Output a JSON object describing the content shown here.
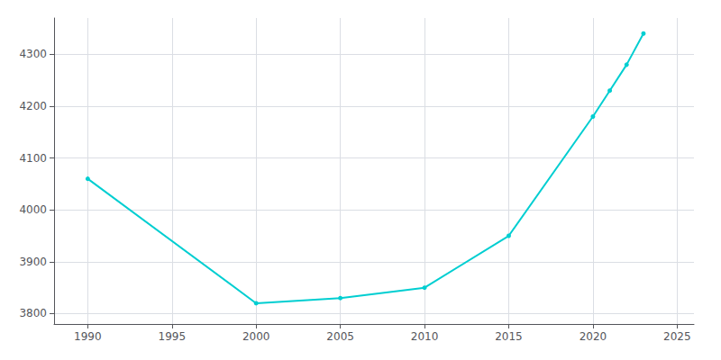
{
  "chart_data": {
    "type": "line",
    "x": [
      1990,
      2000,
      2005,
      2010,
      2015,
      2020,
      2021,
      2022,
      2023
    ],
    "values": [
      4060,
      3820,
      3830,
      3850,
      3950,
      4180,
      4230,
      4280,
      4340
    ],
    "color": "#00CED1",
    "marker": "circle",
    "xlim": [
      1988,
      2026
    ],
    "ylim": [
      3780,
      4370
    ],
    "xticks": [
      1990,
      1995,
      2000,
      2005,
      2010,
      2015,
      2020,
      2025
    ],
    "yticks": [
      3800,
      3900,
      4000,
      4100,
      4200,
      4300
    ],
    "grid": true
  }
}
